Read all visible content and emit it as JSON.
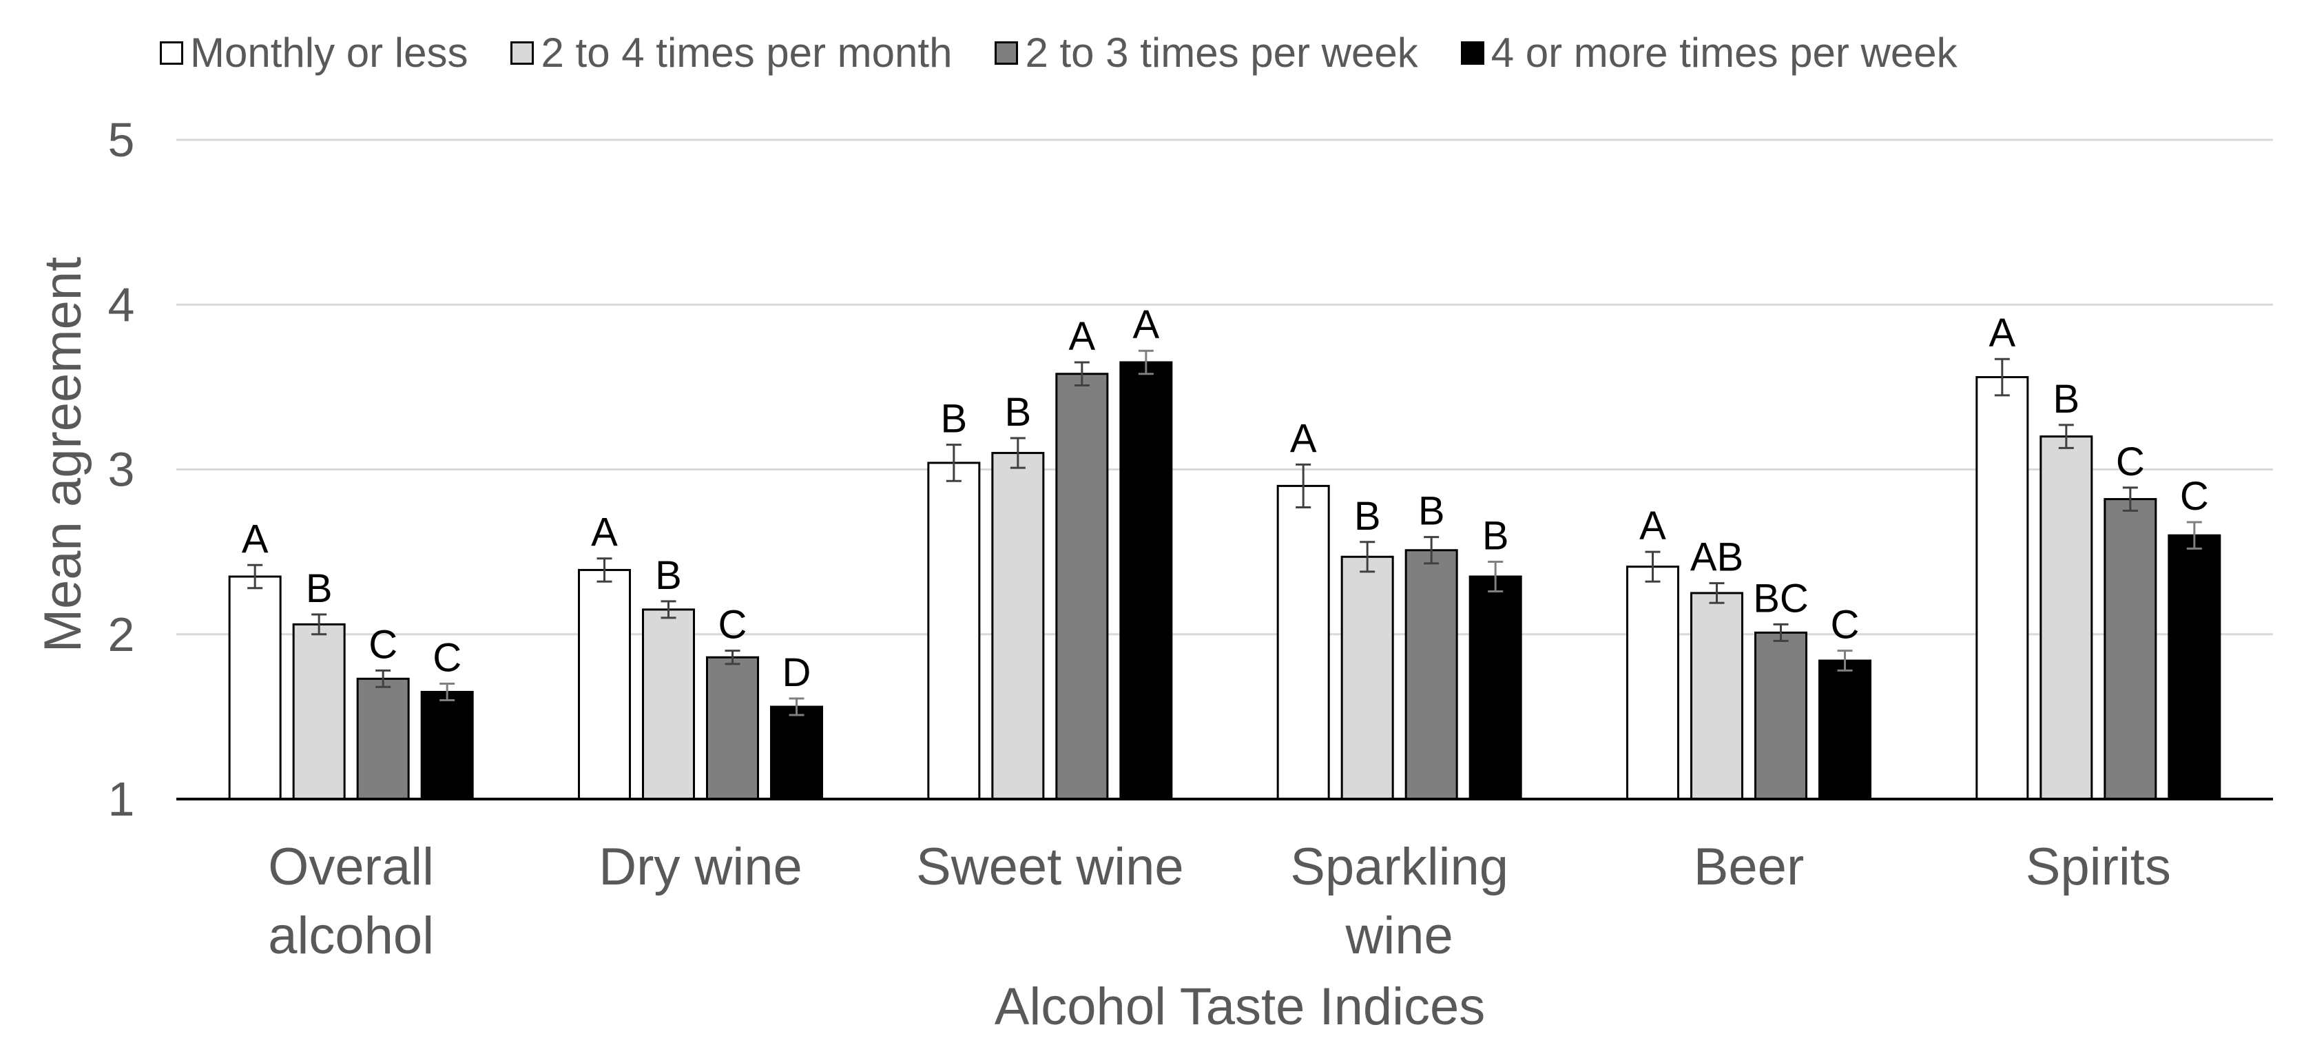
{
  "chart_data": {
    "type": "bar",
    "title": "",
    "xlabel": "Alcohol Taste Indices",
    "ylabel": "Mean agreement",
    "ylim": [
      1,
      5
    ],
    "yticks": [
      "1",
      "2",
      "3",
      "4",
      "5"
    ],
    "grid": true,
    "legend_position": "top",
    "categories": [
      [
        "Overall",
        "alcohol"
      ],
      [
        "Dry wine"
      ],
      [
        "Sweet wine"
      ],
      [
        "Sparkling",
        "wine"
      ],
      [
        "Beer"
      ],
      [
        "Spirits"
      ]
    ],
    "series": [
      {
        "name": "Monthly or less",
        "color": "#ffffff",
        "values": [
          2.35,
          2.39,
          3.04,
          2.9,
          2.41,
          3.56
        ],
        "errors": [
          0.07,
          0.07,
          0.11,
          0.13,
          0.09,
          0.11
        ],
        "labels": [
          "A",
          "A",
          "B",
          "A",
          "A",
          "A"
        ]
      },
      {
        "name": "2 to 4 times per month",
        "color": "#d9d9d9",
        "values": [
          2.06,
          2.15,
          3.1,
          2.47,
          2.25,
          3.2
        ],
        "errors": [
          0.06,
          0.05,
          0.09,
          0.09,
          0.06,
          0.07
        ],
        "labels": [
          "B",
          "B",
          "B",
          "B",
          "AB",
          "B"
        ]
      },
      {
        "name": "2 to 3 times per week",
        "color": "#7f7f7f",
        "values": [
          1.73,
          1.86,
          3.58,
          2.51,
          2.01,
          2.82
        ],
        "errors": [
          0.05,
          0.04,
          0.07,
          0.08,
          0.05,
          0.07
        ],
        "labels": [
          "C",
          "C",
          "A",
          "B",
          "BC",
          "C"
        ]
      },
      {
        "name": "4 or more times per week",
        "color": "#000000",
        "values": [
          1.65,
          1.56,
          3.65,
          2.35,
          1.84,
          2.6
        ],
        "errors": [
          0.05,
          0.05,
          0.07,
          0.09,
          0.06,
          0.08
        ],
        "labels": [
          "C",
          "D",
          "A",
          "B",
          "C",
          "C"
        ]
      }
    ]
  }
}
